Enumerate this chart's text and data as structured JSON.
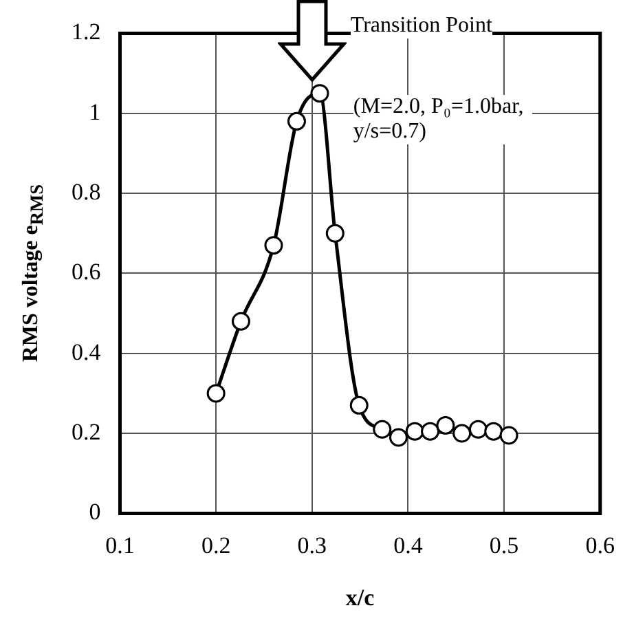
{
  "chart_data": {
    "type": "line",
    "xlabel": "x/c",
    "ylabel": "RMS voltage e$_{RMS}$",
    "x": [
      0.2,
      0.226,
      0.26,
      0.284,
      0.308,
      0.324,
      0.349,
      0.373,
      0.39,
      0.407,
      0.423,
      0.439,
      0.456,
      0.473,
      0.489,
      0.505
    ],
    "series": [
      {
        "color": "#000000",
        "values": [
          0.3,
          0.48,
          0.67,
          0.98,
          1.05,
          0.7,
          0.27,
          0.21,
          0.19,
          0.205,
          0.205,
          0.22,
          0.2,
          0.21,
          0.205,
          0.195
        ]
      }
    ],
    "xlim": [
      0.1,
      0.6
    ],
    "xticks": [
      0.1,
      0.2,
      0.3,
      0.4,
      0.5,
      0.6
    ],
    "ylim": [
      0,
      1.2
    ],
    "yticks": [
      0,
      0.2,
      0.4,
      0.6,
      0.8,
      1,
      1.2
    ],
    "grid": true,
    "legend": false,
    "marker": "circle",
    "line_style": "solid",
    "annotations": [
      "Transition Point",
      "(M=2.0, P₀=1.0bar, y/s=0.7)"
    ]
  }
}
